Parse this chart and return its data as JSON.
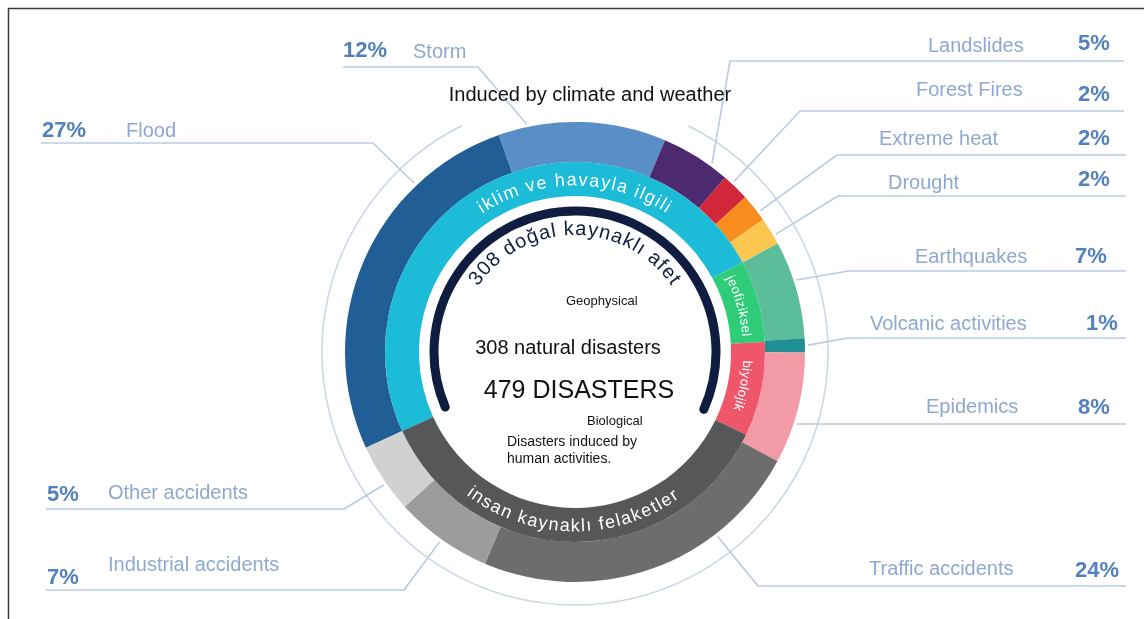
{
  "chart_data": [
    {
      "type": "donut",
      "categories": [
        "Flood",
        "Storm",
        "Landslides",
        "Forest Fires",
        "Extreme heat",
        "Drought",
        "Earthquakes",
        "Volcanic activities",
        "Epidemics",
        "Traffic accidents",
        "Industrial accidents",
        "Other accidents"
      ],
      "values": [
        27,
        12,
        5,
        2,
        2,
        2,
        7,
        1,
        8,
        24,
        7,
        5
      ],
      "colors": [
        "#215e95",
        "#5a8ec6",
        "#4d2a70",
        "#d2263a",
        "#f88d1d",
        "#fcc751",
        "#5bbd9a",
        "#1f8f94",
        "#f29aa5",
        "#6d6d6d",
        "#9c9c9c",
        "#d1d1d1"
      ],
      "value_labels": [
        "27%",
        "12%",
        "5%",
        "2%",
        "2%",
        "2%",
        "7%",
        "1%",
        "8%",
        "24%",
        "7%",
        "5%"
      ]
    },
    {
      "type": "donut",
      "categories": [
        "iklim ve havayla ilgili",
        "jeofiziksel",
        "biyolojik",
        "insan kaynaklı felaketler"
      ],
      "values": [
        49,
        7,
        8,
        36
      ],
      "colors": [
        "#1cbcd8",
        "#2fcc7a",
        "#f0566a",
        "#555759"
      ],
      "annotations": [
        "Induced by climate and weather",
        "308 doğal kaynaklı afet",
        "Geophysical",
        "308 natural disasters",
        "479 DISASTERS",
        "Biological",
        "Disasters induced by\nhuman activities."
      ]
    }
  ]
}
